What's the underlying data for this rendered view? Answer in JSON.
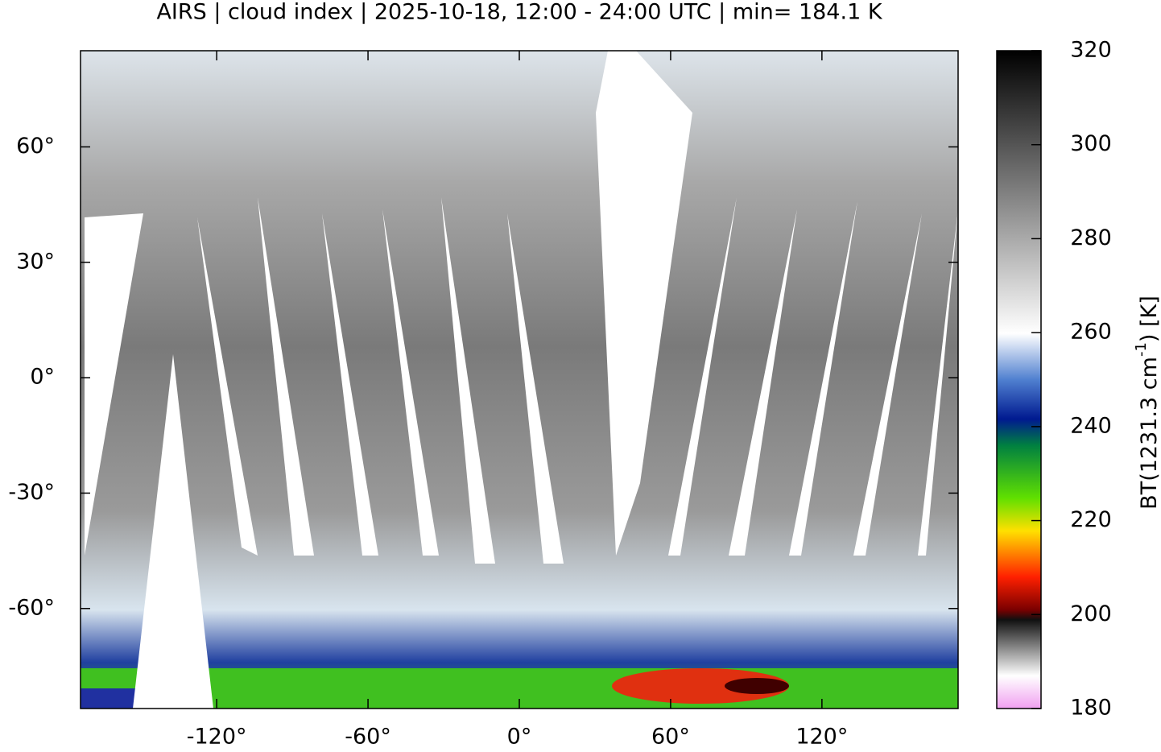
{
  "title": "AIRS | cloud index | 2025-10-18, 12:00 - 24:00 UTC | min= 184.1 K",
  "x_axis": {
    "lim": [
      -174,
      174
    ],
    "ticks": [
      {
        "value": -120,
        "label": "-120°"
      },
      {
        "value": -60,
        "label": "-60°"
      },
      {
        "value": 0,
        "label": "0°"
      },
      {
        "value": 60,
        "label": "60°"
      },
      {
        "value": 120,
        "label": "120°"
      }
    ]
  },
  "y_axis": {
    "lim": [
      -86,
      85
    ],
    "ticks": [
      {
        "value": 60,
        "label": "60°"
      },
      {
        "value": 30,
        "label": "30°"
      },
      {
        "value": 0,
        "label": "0°"
      },
      {
        "value": -30,
        "label": "-30°"
      },
      {
        "value": -60,
        "label": "-60°"
      }
    ]
  },
  "colorbar": {
    "lim": [
      180,
      320
    ],
    "ticks": [
      180,
      200,
      220,
      240,
      260,
      280,
      300,
      320
    ],
    "label": {
      "main": "BT(1231.3 cm",
      "sup": "-1",
      "end": ") [K]"
    }
  }
}
